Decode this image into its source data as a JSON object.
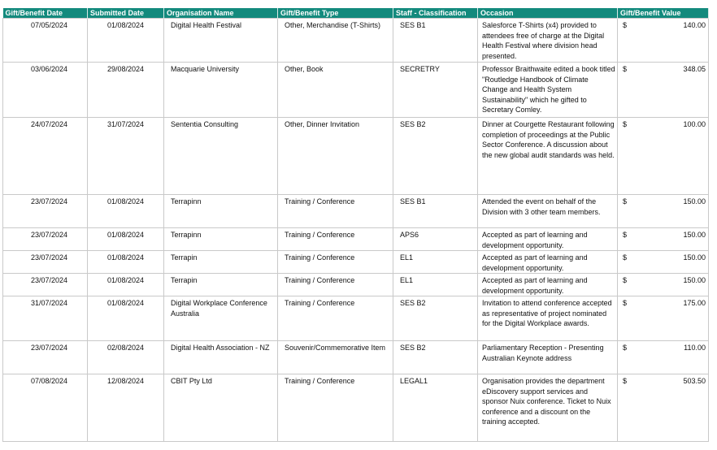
{
  "headers": [
    "Gift/Benefit Date",
    "Submitted Date",
    "Organisation Name",
    "Gift/Benefit Type",
    "Staff - Classification",
    "Occasion",
    "Gift/Benefit Value"
  ],
  "currency_symbol": "$",
  "header_color": "#138a7d",
  "rows": [
    {
      "gift_date": "07/05/2024",
      "submitted": "01/08/2024",
      "organisation": "Digital Health Festival",
      "type": "Other, Merchandise (T-Shirts)",
      "classification": "SES B1",
      "occasion": "Salesforce T-Shirts (x4) provided to attendees free of charge at the Digital Health Festival where division head presented.",
      "value": "140.00"
    },
    {
      "gift_date": "03/06/2024",
      "submitted": "29/08/2024",
      "organisation": "Macquarie University",
      "type": "Other, Book",
      "classification": "SECRETRY",
      "occasion": "Professor Braithwaite edited a book titled \"Routledge Handbook of Climate Change and Health System Sustainability\" which he gifted to Secretary Comley.",
      "value": "348.05"
    },
    {
      "gift_date": "24/07/2024",
      "submitted": "31/07/2024",
      "organisation": "Sententia Consulting",
      "type": "Other, Dinner Invitation",
      "classification": "SES B2",
      "occasion": "Dinner at Courgette Restaurant following completion of proceedings at the Public Sector Conference. A discussion about the new global audit standards was held.",
      "value": "100.00"
    },
    {
      "gift_date": "23/07/2024",
      "submitted": "01/08/2024",
      "organisation": "Terrapinn",
      "type": "Training / Conference",
      "classification": "SES B1",
      "occasion": "Attended the event on behalf of the Division with 3 other team members.",
      "value": "150.00"
    },
    {
      "gift_date": "23/07/2024",
      "submitted": "01/08/2024",
      "organisation": "Terrapinn",
      "type": "Training / Conference",
      "classification": "APS6",
      "occasion": "Accepted as part of learning and development opportunity.",
      "value": "150.00"
    },
    {
      "gift_date": "23/07/2024",
      "submitted": "01/08/2024",
      "organisation": "Terrapin",
      "type": "Training / Conference",
      "classification": "EL1",
      "occasion": "Accepted as part of learning and development opportunity.",
      "value": "150.00"
    },
    {
      "gift_date": "23/07/2024",
      "submitted": "01/08/2024",
      "organisation": "Terrapin",
      "type": "Training / Conference",
      "classification": "EL1",
      "occasion": "Accepted as part of learning and development opportunity.",
      "value": "150.00"
    },
    {
      "gift_date": "31/07/2024",
      "submitted": "01/08/2024",
      "organisation": "Digital Workplace Conference Australia",
      "type": "Training / Conference",
      "classification": "SES B2",
      "occasion": "Invitation to attend conference accepted as representative of project nominated for the Digital Workplace awards.",
      "value": "175.00"
    },
    {
      "gift_date": "23/07/2024",
      "submitted": "02/08/2024",
      "organisation": "Digital Health Association - NZ",
      "type": "Souvenir/Commemorative Item",
      "classification": "SES B2",
      "occasion": "Parliamentary Reception - Presenting Australian Keynote address",
      "value": "110.00"
    },
    {
      "gift_date": "07/08/2024",
      "submitted": "12/08/2024",
      "organisation": "CBIT Pty Ltd",
      "type": "Training / Conference",
      "classification": "LEGAL1",
      "occasion": "Organisation provides the department eDiscovery support services and sponsor Nuix conference. Ticket to Nuix conference and a discount on the training accepted.",
      "value": "503.50"
    }
  ]
}
